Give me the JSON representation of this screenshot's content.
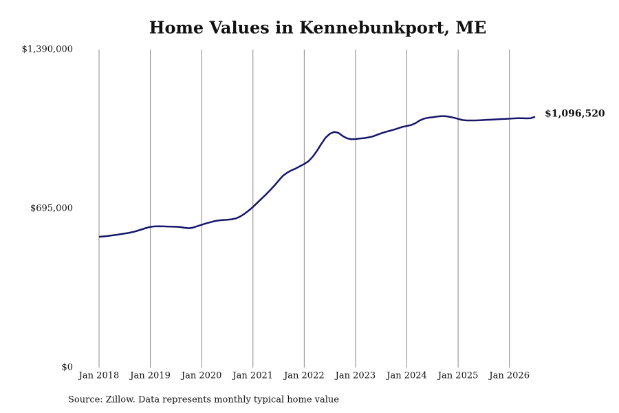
{
  "chart_data": {
    "type": "line",
    "title": "Home Values in Kennebunkport, ME",
    "source": "Source: Zillow. Data represents monthly typical home value",
    "x": [
      "2018-01",
      "2018-02",
      "2018-03",
      "2018-04",
      "2018-05",
      "2018-06",
      "2018-07",
      "2018-08",
      "2018-09",
      "2018-10",
      "2018-11",
      "2018-12",
      "2019-01",
      "2019-02",
      "2019-03",
      "2019-04",
      "2019-05",
      "2019-06",
      "2019-07",
      "2019-08",
      "2019-09",
      "2019-10",
      "2019-11",
      "2019-12",
      "2020-01",
      "2020-02",
      "2020-03",
      "2020-04",
      "2020-05",
      "2020-06",
      "2020-07",
      "2020-08",
      "2020-09",
      "2020-10",
      "2020-11",
      "2020-12",
      "2021-01",
      "2021-02",
      "2021-03",
      "2021-04",
      "2021-05",
      "2021-06",
      "2021-07",
      "2021-08",
      "2021-09",
      "2021-10",
      "2021-11",
      "2021-12",
      "2022-01",
      "2022-02",
      "2022-03",
      "2022-04",
      "2022-05",
      "2022-06",
      "2022-07",
      "2022-08",
      "2022-09",
      "2022-10",
      "2022-11",
      "2022-12",
      "2023-01",
      "2023-02",
      "2023-03",
      "2023-04",
      "2023-05",
      "2023-06",
      "2023-07",
      "2023-08",
      "2023-09",
      "2023-10",
      "2023-11",
      "2023-12",
      "2024-01",
      "2024-02",
      "2024-03",
      "2024-04",
      "2024-05",
      "2024-06",
      "2024-07",
      "2024-08",
      "2024-09",
      "2024-10",
      "2024-11",
      "2024-12",
      "2025-01",
      "2025-02",
      "2025-03",
      "2025-04",
      "2025-05",
      "2025-06",
      "2025-07",
      "2025-08",
      "2025-09",
      "2025-10",
      "2025-11",
      "2025-12",
      "2026-01",
      "2026-02",
      "2026-03",
      "2026-04",
      "2026-05",
      "2026-06",
      "2026-07"
    ],
    "series": [
      {
        "name": "Kennebunkport, ME",
        "color": "#16166b",
        "values": [
          571600,
          573000,
          575000,
          577500,
          580000,
          583000,
          586000,
          589000,
          593000,
          598000,
          604000,
          610000,
          615000,
          617000,
          617500,
          617000,
          616500,
          616000,
          615500,
          614000,
          611000,
          609000,
          612000,
          618000,
          624000,
          630000,
          635000,
          640000,
          643000,
          645000,
          646000,
          648000,
          652000,
          660000,
          672000,
          686000,
          702000,
          720000,
          738000,
          756000,
          775000,
          795000,
          817000,
          838000,
          852000,
          862000,
          870000,
          880000,
          890000,
          902000,
          922000,
          948000,
          978000,
          1005000,
          1022000,
          1030000,
          1026000,
          1012000,
          1002000,
          998000,
          999000,
          1001000,
          1003000,
          1006000,
          1010000,
          1017000,
          1024000,
          1030000,
          1035000,
          1040000,
          1046000,
          1052000,
          1056000,
          1060000,
          1068000,
          1080000,
          1088000,
          1092000,
          1094000,
          1097000,
          1099000,
          1099000,
          1096000,
          1092000,
          1087000,
          1082000,
          1080000,
          1080000,
          1080000,
          1081000,
          1082000,
          1083000,
          1084000,
          1085000,
          1086000,
          1087000,
          1088000,
          1089000,
          1090000,
          1090000,
          1089000,
          1090000,
          1096520
        ],
        "value_labels": [
          null,
          null,
          null,
          null,
          null,
          null,
          null,
          null,
          null,
          null,
          null,
          null,
          null,
          null,
          null,
          null,
          null,
          null,
          null,
          null,
          null,
          null,
          null,
          null,
          null,
          null,
          null,
          null,
          null,
          null,
          null,
          null,
          null,
          null,
          null,
          null,
          null,
          null,
          null,
          null,
          null,
          null,
          null,
          null,
          null,
          null,
          null,
          null,
          null,
          null,
          null,
          null,
          null,
          null,
          null,
          null,
          null,
          null,
          null,
          null,
          null,
          null,
          null,
          null,
          null,
          null,
          null,
          null,
          null,
          null,
          null,
          null,
          null,
          null,
          null,
          null,
          null,
          null,
          null,
          null,
          null,
          null,
          null,
          null,
          null,
          null,
          null,
          null,
          null,
          null,
          null,
          null,
          null,
          null,
          null,
          null,
          null,
          null,
          null,
          null,
          null,
          null,
          "$1,096,520"
        ]
      }
    ],
    "xlim": [
      "2018-01",
      "2026-07"
    ],
    "xticks": [
      {
        "value": "2018-01",
        "label": "Jan 2018"
      },
      {
        "value": "2019-01",
        "label": "Jan 2019"
      },
      {
        "value": "2020-01",
        "label": "Jan 2020"
      },
      {
        "value": "2021-01",
        "label": "Jan 2021"
      },
      {
        "value": "2022-01",
        "label": "Jan 2022"
      },
      {
        "value": "2023-01",
        "label": "Jan 2023"
      },
      {
        "value": "2024-01",
        "label": "Jan 2024"
      },
      {
        "value": "2025-01",
        "label": "Jan 2025"
      },
      {
        "value": "2026-01",
        "label": "Jan 2026"
      }
    ],
    "ylim": [
      0,
      1390000
    ],
    "yticks": [
      {
        "value": 0,
        "label": "$0"
      },
      {
        "value": 695000,
        "label": "$695,000"
      },
      {
        "value": 1390000,
        "label": "$1,390,000"
      }
    ],
    "grid": "x"
  }
}
